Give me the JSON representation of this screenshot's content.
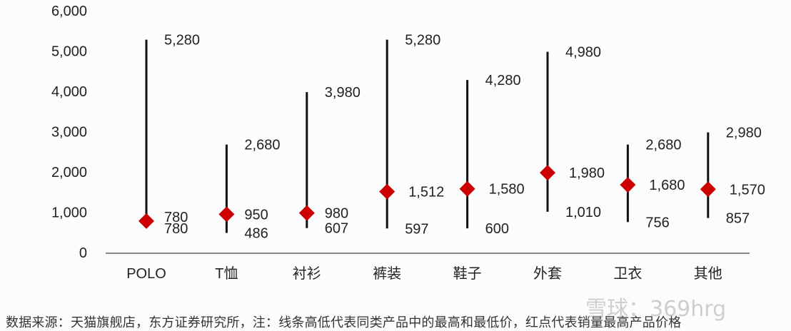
{
  "chart_data": {
    "type": "high-low-marker",
    "categories": [
      "POLO",
      "T恤",
      "衬衫",
      "裤装",
      "鞋子",
      "外套",
      "卫衣",
      "其他"
    ],
    "series": [
      {
        "role": "high",
        "values": [
          5280,
          2680,
          3980,
          5280,
          4280,
          4980,
          2680,
          2980
        ],
        "labels": [
          "5,280",
          "2,680",
          "3,980",
          "5,280",
          "4,280",
          "4,980",
          "2,680",
          "2,980"
        ]
      },
      {
        "role": "low",
        "values": [
          780,
          486,
          607,
          597,
          600,
          1010,
          756,
          857
        ],
        "labels": [
          "780",
          "486",
          "607",
          "597",
          "600",
          "1,010",
          "756",
          "857"
        ]
      },
      {
        "role": "marker",
        "values": [
          780,
          950,
          980,
          1512,
          1580,
          1980,
          1680,
          1570
        ],
        "labels": [
          "780",
          "950",
          "980",
          "1,512",
          "1,580",
          "1,980",
          "1,680",
          "1,570"
        ]
      }
    ],
    "yticks": [
      "0",
      "1,000",
      "2,000",
      "3,000",
      "4,000",
      "5,000",
      "6,000"
    ],
    "ylim": [
      0,
      6000
    ],
    "grid": false,
    "colors": {
      "line": "#111111",
      "marker": "#cc0000",
      "axis": "#888888",
      "text": "#222222"
    }
  },
  "footer": "数据来源：天猫旗舰店，东方证券研究所，注：线条高低代表同类产品中的最高和最低价，红点代表销量最高产品价格",
  "watermark": "雪球：369hrg"
}
